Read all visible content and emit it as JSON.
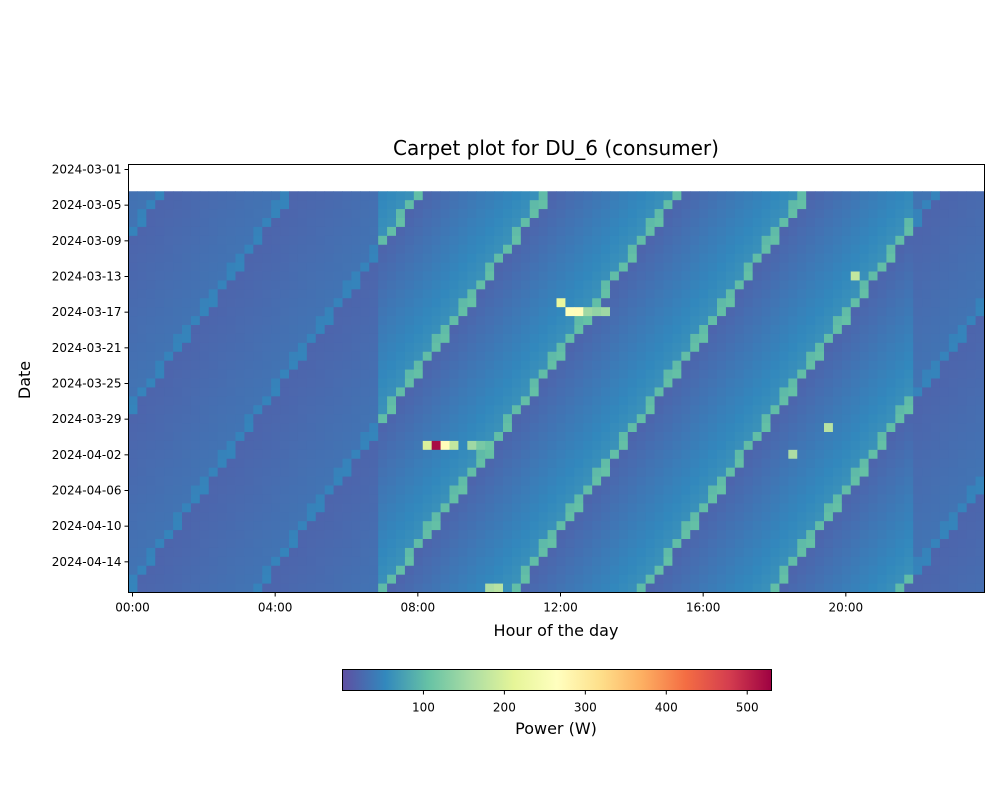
{
  "chart_data": {
    "type": "heatmap",
    "title": "Carpet plot for DU_6 (consumer)",
    "xlabel": "Hour of the day",
    "ylabel": "Date",
    "x_ticks": [
      "00:00",
      "04:00",
      "08:00",
      "12:00",
      "16:00",
      "20:00"
    ],
    "y_ticks": [
      "2024-03-01",
      "2024-03-05",
      "2024-03-09",
      "2024-03-13",
      "2024-03-17",
      "2024-03-21",
      "2024-03-25",
      "2024-03-29",
      "2024-04-02",
      "2024-04-06",
      "2024-04-10",
      "2024-04-14"
    ],
    "x_range_hours": [
      0,
      24
    ],
    "date_range": [
      "2024-03-01",
      "2024-04-17"
    ],
    "data_start_date": "2024-03-04",
    "data_end_date": "2024-04-17",
    "interval_minutes": 15,
    "colormap": "Spectral_r",
    "colorbar": {
      "label": "Power (W)",
      "ticks": [
        100,
        200,
        300,
        400,
        500
      ],
      "range": [
        0,
        530
      ]
    },
    "baseline_power_w": "approx. 20-80",
    "notable_values": [
      {
        "date": "2024-03-16",
        "time": "12:00",
        "value": 220
      },
      {
        "date": "2024-03-17",
        "time": "12:15",
        "value": 260
      },
      {
        "date": "2024-03-17",
        "time": "12:30",
        "value": 270
      },
      {
        "date": "2024-03-17",
        "time": "12:45",
        "value": 150
      },
      {
        "date": "2024-03-17",
        "time": "13:00",
        "value": 140
      },
      {
        "date": "2024-03-17",
        "time": "13:15",
        "value": 150
      },
      {
        "date": "2024-03-13",
        "time": "20:15",
        "value": 180
      },
      {
        "date": "2024-03-30",
        "time": "19:30",
        "value": 170
      },
      {
        "date": "2024-04-01",
        "time": "08:15",
        "value": 200
      },
      {
        "date": "2024-04-01",
        "time": "08:30",
        "value": 520
      },
      {
        "date": "2024-04-01",
        "time": "08:45",
        "value": 270
      },
      {
        "date": "2024-04-01",
        "time": "09:00",
        "value": 180
      },
      {
        "date": "2024-04-01",
        "time": "09:30",
        "value": 150
      },
      {
        "date": "2024-04-01",
        "time": "09:45",
        "value": 120
      },
      {
        "date": "2024-04-01",
        "time": "10:00",
        "value": 110
      },
      {
        "date": "2024-04-02",
        "time": "18:30",
        "value": 160
      },
      {
        "date": "2024-04-17",
        "time": "10:00",
        "value": 160
      },
      {
        "date": "2024-04-17",
        "time": "10:15",
        "value": 170
      }
    ]
  }
}
